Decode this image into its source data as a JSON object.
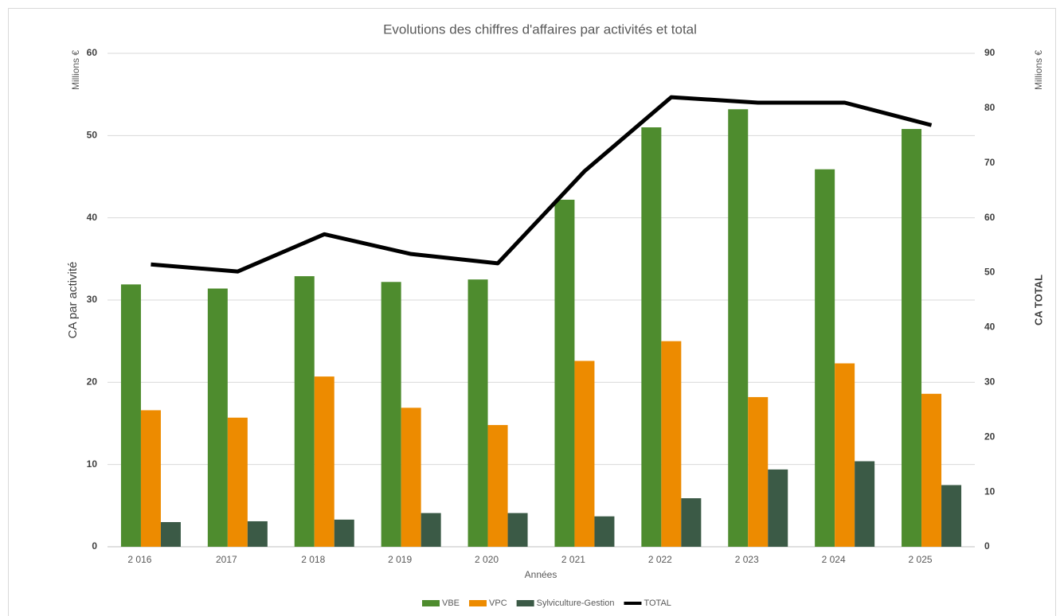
{
  "chart_data": {
    "type": "bar_line",
    "title": "Evolutions des chiffres d'affaires par activités et total",
    "y_unit": "Millions €",
    "y2_unit": "Millions €",
    "ylabel": "CA par activité",
    "y2label": "CA TOTAL",
    "xlabel": "Années",
    "categories": [
      "2 016",
      "2017",
      "2 018",
      "2 019",
      "2 020",
      "2 021",
      "2 022",
      "2 023",
      "2 024",
      "2 025"
    ],
    "series": [
      {
        "name": "VBE",
        "color": "#4e8c2e",
        "values": [
          31.9,
          31.4,
          32.9,
          32.2,
          32.5,
          42.2,
          51.0,
          53.2,
          45.9,
          50.8
        ]
      },
      {
        "name": "VPC",
        "color": "#ed8b00",
        "values": [
          16.6,
          15.7,
          20.7,
          16.9,
          14.8,
          22.6,
          25.0,
          18.2,
          22.3,
          18.6
        ]
      },
      {
        "name": "Sylviculture-Gestion",
        "color": "#3b5a46",
        "values": [
          3.0,
          3.1,
          3.3,
          4.1,
          4.1,
          3.7,
          5.9,
          9.4,
          10.4,
          7.5
        ]
      },
      {
        "name": "TOTAL",
        "color": "#000000",
        "axis": "y2",
        "kind": "line",
        "values": [
          51.5,
          50.2,
          57.0,
          53.4,
          51.7,
          68.5,
          82.0,
          81.0,
          81.0,
          76.9
        ]
      }
    ],
    "ylim": [
      0,
      60
    ],
    "yticks": [
      0,
      10,
      20,
      30,
      40,
      50,
      60
    ],
    "y2lim": [
      0,
      90
    ],
    "y2ticks": [
      0,
      10,
      20,
      30,
      40,
      50,
      60,
      70,
      80,
      90
    ],
    "grid": true,
    "legend": "bottom"
  }
}
